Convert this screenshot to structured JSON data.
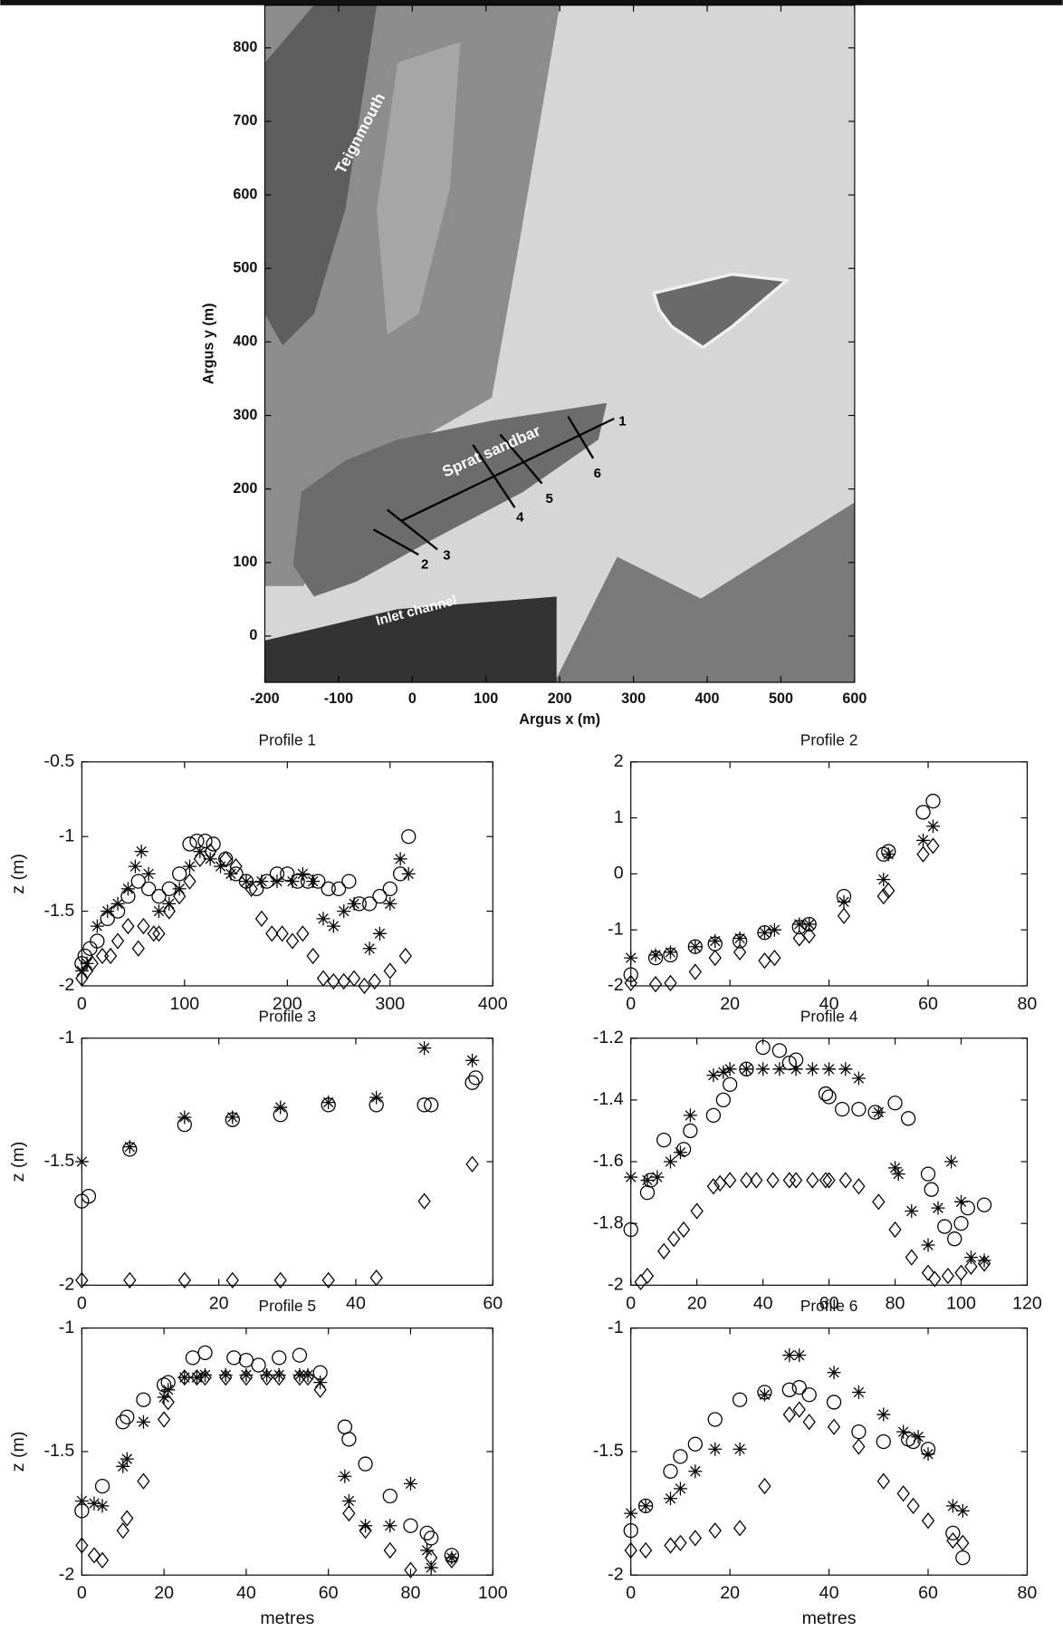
{
  "chart_data": [
    {
      "type": "image",
      "xlabel": "Argus x (m)",
      "ylabel": "Argus y (m)",
      "xlim": [
        -200,
        600
      ],
      "ylim": [
        -63,
        858
      ],
      "xticks": [
        -200,
        -100,
        0,
        100,
        200,
        300,
        400,
        500,
        600
      ],
      "yticks": [
        0,
        100,
        200,
        300,
        400,
        500,
        600,
        700,
        800
      ],
      "annotations": [
        "Teignmouth",
        "Sprat sandbar",
        "Inlet channel",
        "1",
        "2",
        "3",
        "4",
        "5",
        "6"
      ]
    },
    {
      "type": "scatter",
      "title": "Profile 1",
      "ylabel": "z (m)",
      "xlim": [
        0,
        400
      ],
      "ylim": [
        -2,
        -0.5
      ],
      "xticks": [
        0,
        100,
        200,
        300,
        400
      ],
      "yticks": [
        -2,
        -1.5,
        -1,
        -0.5
      ],
      "series": [
        {
          "marker": "circle",
          "color": "#000",
          "x": [
            0,
            3,
            8,
            15,
            25,
            35,
            45,
            55,
            65,
            75,
            85,
            95,
            105,
            112,
            120,
            128,
            140,
            150,
            160,
            170,
            180,
            190,
            200,
            210,
            220,
            230,
            240,
            250,
            260,
            270,
            280,
            290,
            300,
            310,
            318
          ],
          "values": [
            -1.85,
            -1.8,
            -1.75,
            -1.7,
            -1.55,
            -1.5,
            -1.4,
            -1.3,
            -1.35,
            -1.4,
            -1.35,
            -1.25,
            -1.05,
            -1.03,
            -1.03,
            -1.05,
            -1.15,
            -1.25,
            -1.3,
            -1.35,
            -1.3,
            -1.25,
            -1.25,
            -1.3,
            -1.3,
            -1.3,
            -1.35,
            -1.35,
            -1.3,
            -1.45,
            -1.45,
            -1.4,
            -1.35,
            -1.25,
            -1.0
          ]
        },
        {
          "marker": "star",
          "color": "#000",
          "x": [
            0,
            5,
            15,
            25,
            35,
            45,
            52,
            58,
            65,
            75,
            85,
            95,
            105,
            115,
            125,
            135,
            145,
            160,
            175,
            190,
            205,
            215,
            225,
            235,
            245,
            255,
            265,
            280,
            290,
            300,
            310,
            318
          ],
          "values": [
            -1.9,
            -1.85,
            -1.6,
            -1.5,
            -1.45,
            -1.35,
            -1.2,
            -1.1,
            -1.25,
            -1.5,
            -1.45,
            -1.35,
            -1.2,
            -1.1,
            -1.15,
            -1.2,
            -1.25,
            -1.3,
            -1.3,
            -1.3,
            -1.3,
            -1.25,
            -1.3,
            -1.55,
            -1.6,
            -1.5,
            -1.45,
            -1.75,
            -1.65,
            -1.45,
            -1.15,
            -1.25
          ]
        },
        {
          "marker": "diamond",
          "color": "#000",
          "x": [
            0,
            5,
            10,
            20,
            28,
            35,
            45,
            55,
            60,
            70,
            75,
            85,
            95,
            105,
            115,
            125,
            140,
            150,
            165,
            175,
            185,
            195,
            205,
            215,
            225,
            235,
            245,
            255,
            265,
            275,
            285,
            300,
            315
          ],
          "values": [
            -1.95,
            -1.9,
            -1.85,
            -1.8,
            -1.8,
            -1.7,
            -1.6,
            -1.75,
            -1.6,
            -1.65,
            -1.65,
            -1.5,
            -1.4,
            -1.3,
            -1.15,
            -1.1,
            -1.15,
            -1.2,
            -1.35,
            -1.55,
            -1.65,
            -1.65,
            -1.7,
            -1.65,
            -1.8,
            -1.95,
            -1.97,
            -1.97,
            -1.95,
            -2.0,
            -1.97,
            -1.9,
            -1.8
          ]
        }
      ]
    },
    {
      "type": "scatter",
      "title": "Profile 2",
      "xlim": [
        0,
        80
      ],
      "ylim": [
        -2,
        2
      ],
      "xticks": [
        0,
        20,
        40,
        60,
        80
      ],
      "yticks": [
        -2,
        -1,
        0,
        1,
        2
      ],
      "series": [
        {
          "marker": "circle",
          "color": "#000",
          "x": [
            0,
            5,
            8,
            13,
            17,
            22,
            27,
            34,
            36,
            43,
            51,
            52,
            59,
            61
          ],
          "values": [
            -1.8,
            -1.5,
            -1.45,
            -1.3,
            -1.25,
            -1.2,
            -1.05,
            -0.95,
            -0.9,
            -0.4,
            0.35,
            0.4,
            1.1,
            1.3
          ]
        },
        {
          "marker": "star",
          "color": "#000",
          "x": [
            0,
            5,
            8,
            13,
            17,
            22,
            27,
            29,
            34,
            36,
            43,
            51,
            52,
            59,
            61
          ],
          "values": [
            -1.5,
            -1.45,
            -1.4,
            -1.3,
            -1.2,
            -1.15,
            -1.05,
            -1.0,
            -0.9,
            -0.9,
            -0.5,
            -0.1,
            0.35,
            0.6,
            0.85
          ]
        },
        {
          "marker": "diamond",
          "color": "#000",
          "x": [
            0,
            5,
            8,
            13,
            17,
            22,
            27,
            29,
            34,
            36,
            43,
            51,
            52,
            59,
            61
          ],
          "values": [
            -1.95,
            -1.97,
            -1.95,
            -1.75,
            -1.5,
            -1.4,
            -1.55,
            -1.5,
            -1.15,
            -1.1,
            -0.75,
            -0.4,
            -0.3,
            0.35,
            0.5
          ]
        }
      ]
    },
    {
      "type": "scatter",
      "title": "Profile 3",
      "ylabel": "z (m)",
      "xlim": [
        0,
        60
      ],
      "ylim": [
        -2,
        -1
      ],
      "xticks": [
        0,
        20,
        40,
        60
      ],
      "yticks": [
        -2,
        -1.5,
        -1
      ],
      "series": [
        {
          "marker": "circle",
          "color": "#000",
          "x": [
            0,
            1,
            7,
            15,
            22,
            29,
            36,
            43,
            50,
            51,
            57,
            57.5
          ],
          "values": [
            -1.66,
            -1.64,
            -1.45,
            -1.35,
            -1.33,
            -1.31,
            -1.27,
            -1.27,
            -1.27,
            -1.27,
            -1.18,
            -1.16
          ]
        },
        {
          "marker": "star",
          "color": "#000",
          "x": [
            0,
            7,
            15,
            22,
            29,
            36,
            43,
            50,
            57
          ],
          "values": [
            -1.5,
            -1.44,
            -1.32,
            -1.32,
            -1.28,
            -1.26,
            -1.24,
            -1.04,
            -1.09
          ]
        },
        {
          "marker": "diamond",
          "color": "#000",
          "x": [
            0,
            7,
            15,
            22,
            29,
            36,
            43,
            50,
            57
          ],
          "values": [
            -1.98,
            -1.98,
            -1.98,
            -1.98,
            -1.98,
            -1.98,
            -1.97,
            -1.66,
            -1.51
          ]
        }
      ]
    },
    {
      "type": "scatter",
      "title": "Profile 4",
      "xlim": [
        0,
        120
      ],
      "ylim": [
        -2,
        -1.2
      ],
      "xticks": [
        0,
        20,
        40,
        60,
        80,
        100,
        120
      ],
      "yticks": [
        -2,
        -1.8,
        -1.6,
        -1.4,
        -1.2
      ],
      "series": [
        {
          "marker": "circle",
          "color": "#000",
          "x": [
            0,
            5,
            6,
            10,
            16,
            18,
            25,
            28,
            30,
            35,
            40,
            45,
            48,
            50,
            59,
            60,
            64,
            69,
            74,
            80,
            84,
            90,
            91,
            95,
            98,
            100,
            102,
            107
          ],
          "values": [
            -1.82,
            -1.7,
            -1.66,
            -1.53,
            -1.56,
            -1.5,
            -1.45,
            -1.4,
            -1.35,
            -1.3,
            -1.23,
            -1.24,
            -1.28,
            -1.27,
            -1.38,
            -1.39,
            -1.43,
            -1.43,
            -1.44,
            -1.41,
            -1.46,
            -1.64,
            -1.69,
            -1.81,
            -1.85,
            -1.8,
            -1.75,
            -1.74
          ]
        },
        {
          "marker": "star",
          "color": "#000",
          "x": [
            0,
            5,
            8,
            12,
            15,
            18,
            25,
            28,
            30,
            35,
            40,
            45,
            50,
            55,
            60,
            65,
            69,
            75,
            80,
            81,
            85,
            90,
            93,
            97,
            100,
            103,
            107
          ],
          "values": [
            -1.65,
            -1.66,
            -1.65,
            -1.6,
            -1.57,
            -1.45,
            -1.32,
            -1.31,
            -1.3,
            -1.3,
            -1.3,
            -1.3,
            -1.3,
            -1.3,
            -1.3,
            -1.3,
            -1.33,
            -1.44,
            -1.62,
            -1.64,
            -1.76,
            -1.87,
            -1.75,
            -1.6,
            -1.73,
            -1.91,
            -1.92
          ]
        },
        {
          "marker": "diamond",
          "color": "#000",
          "x": [
            3,
            5,
            10,
            13,
            16,
            20,
            25,
            27,
            30,
            35,
            38,
            43,
            48,
            50,
            55,
            59,
            60,
            65,
            69,
            75,
            80,
            85,
            90,
            92,
            96,
            100,
            103,
            107
          ],
          "values": [
            -1.99,
            -1.97,
            -1.89,
            -1.85,
            -1.82,
            -1.76,
            -1.68,
            -1.67,
            -1.66,
            -1.66,
            -1.66,
            -1.66,
            -1.66,
            -1.66,
            -1.66,
            -1.66,
            -1.66,
            -1.66,
            -1.68,
            -1.73,
            -1.82,
            -1.91,
            -1.96,
            -1.98,
            -1.97,
            -1.96,
            -1.94,
            -1.93
          ]
        }
      ]
    },
    {
      "type": "scatter",
      "title": "Profile 5",
      "ylabel": "z (m)",
      "xlabel": "metres",
      "xlim": [
        0,
        100
      ],
      "ylim": [
        -2,
        -1
      ],
      "xticks": [
        0,
        20,
        40,
        60,
        80,
        100
      ],
      "yticks": [
        -2,
        -1.5,
        -1
      ],
      "series": [
        {
          "marker": "circle",
          "color": "#000",
          "x": [
            0,
            5,
            10,
            11,
            15,
            20,
            21,
            27,
            30,
            37,
            40,
            43,
            48,
            53,
            58,
            64,
            65,
            69,
            75,
            80,
            84,
            85,
            90
          ],
          "values": [
            -1.74,
            -1.64,
            -1.38,
            -1.36,
            -1.29,
            -1.23,
            -1.22,
            -1.12,
            -1.1,
            -1.12,
            -1.13,
            -1.15,
            -1.12,
            -1.11,
            -1.18,
            -1.4,
            -1.45,
            -1.55,
            -1.68,
            -1.8,
            -1.83,
            -1.85,
            -1.92
          ]
        },
        {
          "marker": "star",
          "color": "#000",
          "x": [
            0,
            3,
            5,
            10,
            11,
            15,
            20,
            21,
            25,
            28,
            30,
            35,
            40,
            45,
            48,
            53,
            55,
            58,
            64,
            65,
            69,
            75,
            80,
            84,
            85,
            90
          ],
          "values": [
            -1.7,
            -1.71,
            -1.72,
            -1.56,
            -1.53,
            -1.38,
            -1.28,
            -1.25,
            -1.2,
            -1.2,
            -1.19,
            -1.19,
            -1.19,
            -1.19,
            -1.19,
            -1.19,
            -1.19,
            -1.22,
            -1.6,
            -1.7,
            -1.8,
            -1.8,
            -1.63,
            -1.9,
            -1.97,
            -1.93
          ]
        },
        {
          "marker": "diamond",
          "color": "#000",
          "x": [
            0,
            3,
            5,
            10,
            11,
            15,
            20,
            21,
            25,
            28,
            30,
            35,
            40,
            45,
            48,
            53,
            55,
            58,
            65,
            69,
            75,
            80,
            85,
            90
          ],
          "values": [
            -1.88,
            -1.92,
            -1.94,
            -1.82,
            -1.77,
            -1.62,
            -1.37,
            -1.3,
            -1.2,
            -1.2,
            -1.2,
            -1.2,
            -1.2,
            -1.2,
            -1.2,
            -1.2,
            -1.2,
            -1.25,
            -1.75,
            -1.82,
            -1.9,
            -1.98,
            -1.93,
            -1.94
          ]
        }
      ]
    },
    {
      "type": "scatter",
      "title": "Profile 6",
      "xlabel": "metres",
      "xlim": [
        0,
        80
      ],
      "ylim": [
        -2,
        -1
      ],
      "xticks": [
        0,
        20,
        40,
        60,
        80
      ],
      "yticks": [
        -2,
        -1.5,
        -1
      ],
      "series": [
        {
          "marker": "circle",
          "color": "#000",
          "x": [
            0,
            3,
            8,
            10,
            13,
            17,
            22,
            27,
            32,
            34,
            36,
            41,
            46,
            51,
            56,
            57,
            60,
            65,
            67
          ],
          "values": [
            -1.82,
            -1.72,
            -1.58,
            -1.52,
            -1.47,
            -1.37,
            -1.29,
            -1.26,
            -1.25,
            -1.24,
            -1.27,
            -1.3,
            -1.42,
            -1.46,
            -1.45,
            -1.46,
            -1.49,
            -1.83,
            -1.93
          ]
        },
        {
          "marker": "star",
          "color": "#000",
          "x": [
            0,
            3,
            8,
            10,
            13,
            17,
            22,
            27,
            32,
            34,
            41,
            46,
            51,
            55,
            58,
            60,
            65,
            67
          ],
          "values": [
            -1.75,
            -1.72,
            -1.69,
            -1.65,
            -1.58,
            -1.49,
            -1.49,
            -1.27,
            -1.11,
            -1.11,
            -1.18,
            -1.26,
            -1.35,
            -1.42,
            -1.44,
            -1.51,
            -1.72,
            -1.74
          ]
        },
        {
          "marker": "diamond",
          "color": "#000",
          "x": [
            0,
            3,
            8,
            10,
            13,
            17,
            22,
            27,
            32,
            34,
            36,
            41,
            46,
            51,
            55,
            57,
            60,
            65,
            67
          ],
          "values": [
            -1.9,
            -1.9,
            -1.88,
            -1.87,
            -1.85,
            -1.82,
            -1.81,
            -1.64,
            -1.35,
            -1.33,
            -1.38,
            -1.4,
            -1.48,
            -1.62,
            -1.67,
            -1.72,
            -1.78,
            -1.86,
            -1.87
          ]
        }
      ]
    }
  ]
}
